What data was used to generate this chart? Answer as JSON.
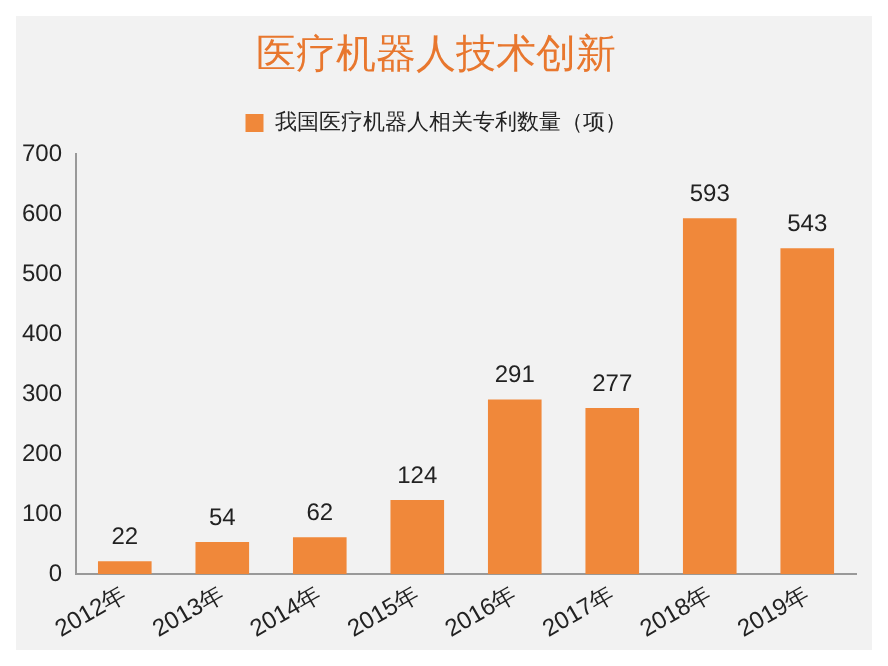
{
  "chart_data": {
    "type": "bar",
    "title": "医疗机器人技术创新",
    "categories": [
      "2012年",
      "2013年",
      "2014年",
      "2015年",
      "2016年",
      "2017年",
      "2018年",
      "2019年"
    ],
    "series": [
      {
        "name": "我国医疗机器人相关专利数量（项）",
        "color": "#f0883a",
        "values": [
          22,
          54,
          62,
          124,
          291,
          277,
          593,
          543
        ]
      }
    ],
    "ylim": [
      0,
      700
    ],
    "yticks": [
      0,
      100,
      200,
      300,
      400,
      500,
      600,
      700
    ],
    "grid": false,
    "legend": "top",
    "data_labels": true
  }
}
